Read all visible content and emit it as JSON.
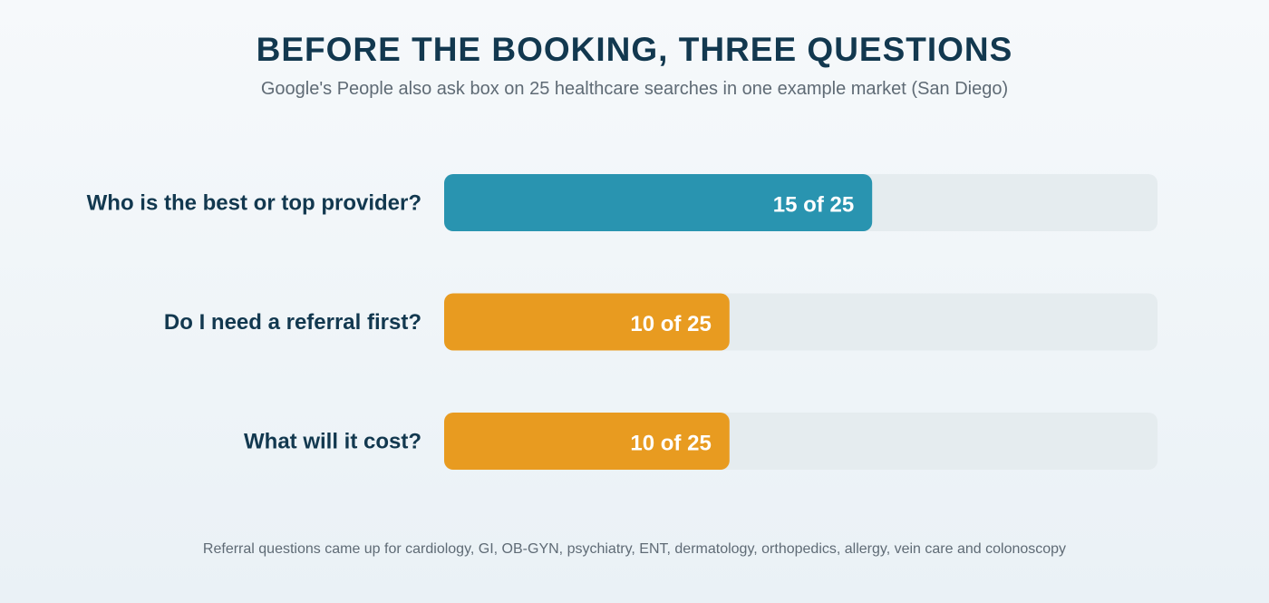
{
  "title": "BEFORE THE BOOKING, THREE QUESTIONS",
  "subtitle": "Google's People also ask box on 25 healthcare searches in one example market (San Diego)",
  "footnote": "Referral questions came up for cardiology, GI, OB-GYN, psychiatry, ENT, dermatology, orthopedics, allergy, vein care and colonoscopy",
  "colors": {
    "track": "#e5ecef",
    "highlight": "#2994b0",
    "default": "#e89b20"
  },
  "chart_data": {
    "type": "bar",
    "orientation": "horizontal",
    "title": "BEFORE THE BOOKING, THREE QUESTIONS",
    "subtitle": "Google's People also ask box on 25 healthcare searches in one example market (San Diego)",
    "xlim": [
      0,
      25
    ],
    "grid": false,
    "legend": "none",
    "categories": [
      "Who is the best or top provider?",
      "Do I need a referral first?",
      "What will it cost?"
    ],
    "values": [
      15,
      10,
      10
    ],
    "total": 25,
    "value_labels": [
      "15 of 25",
      "10 of 25",
      "10 of 25"
    ],
    "bar_colors": [
      "#2994b0",
      "#e89b20",
      "#e89b20"
    ]
  }
}
